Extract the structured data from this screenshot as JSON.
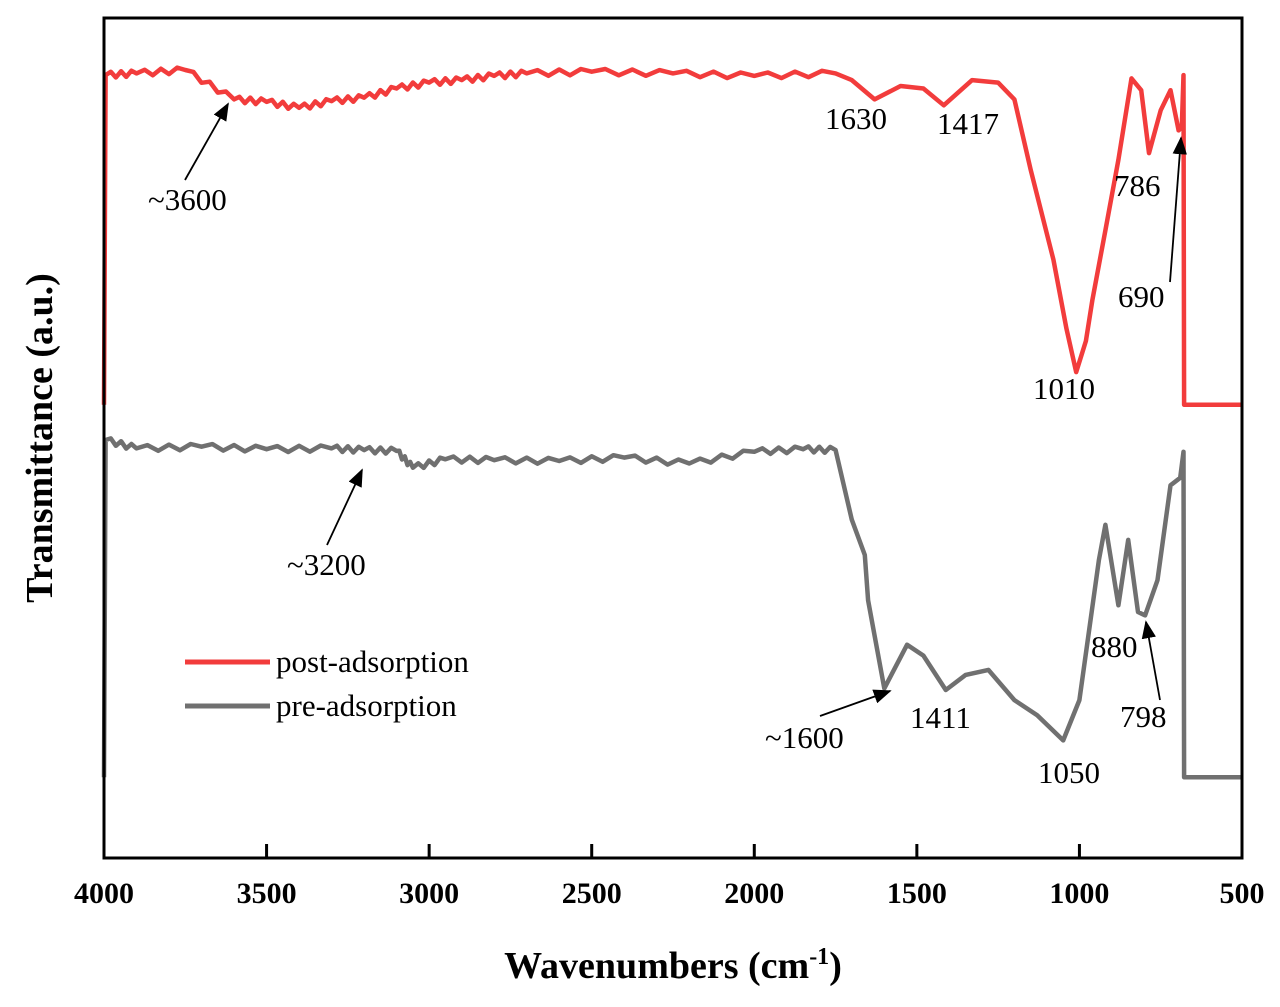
{
  "chart_data": {
    "type": "line",
    "title": "",
    "xlabel": "Wavenumbers (cm",
    "xlabel_sup": "-1",
    "xlabel_close": ")",
    "ylabel": "Transmittance (a.u.)",
    "xlim": [
      4000,
      500
    ],
    "ylim": [
      0,
      100
    ],
    "x_reversed": true,
    "grid": false,
    "legend_placement": "lower-left",
    "xticks": [
      4000,
      3500,
      3000,
      2500,
      2000,
      1500,
      1000,
      500
    ],
    "xtick_labels": [
      "4000",
      "3500",
      "3000",
      "2500",
      "2000",
      "1500",
      "1000",
      "500"
    ],
    "series": [
      {
        "name": "post-adsorption",
        "color": "#f23c3c",
        "points": [
          [
            4000,
            53.9
          ],
          [
            3995,
            93.2
          ],
          [
            3900,
            93.4
          ],
          [
            3750,
            93.8
          ],
          [
            3600,
            90.3
          ],
          [
            3500,
            90.0
          ],
          [
            3400,
            89.3
          ],
          [
            3300,
            90.1
          ],
          [
            3200,
            90.5
          ],
          [
            3100,
            91.6
          ],
          [
            3000,
            92.3
          ],
          [
            2900,
            92.6
          ],
          [
            2800,
            93.1
          ],
          [
            2700,
            93.4
          ],
          [
            2500,
            93.6
          ],
          [
            2250,
            93.4
          ],
          [
            2000,
            93.1
          ],
          [
            1750,
            93.4
          ],
          [
            1700,
            92.6
          ],
          [
            1630,
            90.3
          ],
          [
            1550,
            91.9
          ],
          [
            1480,
            91.6
          ],
          [
            1417,
            89.6
          ],
          [
            1330,
            92.6
          ],
          [
            1250,
            92.3
          ],
          [
            1200,
            90.3
          ],
          [
            1150,
            81.9
          ],
          [
            1080,
            71.2
          ],
          [
            1040,
            63.0
          ],
          [
            1010,
            57.8
          ],
          [
            980,
            61.5
          ],
          [
            960,
            66.4
          ],
          [
            920,
            74.7
          ],
          [
            880,
            83.1
          ],
          [
            840,
            92.8
          ],
          [
            810,
            91.4
          ],
          [
            786,
            83.9
          ],
          [
            750,
            89.0
          ],
          [
            720,
            91.4
          ],
          [
            695,
            86.6
          ],
          [
            685,
            87.0
          ],
          [
            680,
            93.2
          ],
          [
            678,
            53.9
          ],
          [
            500,
            53.9
          ]
        ]
      },
      {
        "name": "pre-adsorption",
        "color": "#707070",
        "points": [
          [
            4000,
            9.5
          ],
          [
            3995,
            49.7
          ],
          [
            3900,
            48.7
          ],
          [
            3700,
            48.9
          ],
          [
            3500,
            48.6
          ],
          [
            3300,
            48.7
          ],
          [
            3200,
            48.5
          ],
          [
            3100,
            48.4
          ],
          [
            3050,
            46.4
          ],
          [
            2950,
            47.4
          ],
          [
            2800,
            47.3
          ],
          [
            2600,
            47.2
          ],
          [
            2400,
            47.6
          ],
          [
            2200,
            46.9
          ],
          [
            2000,
            48.3
          ],
          [
            1850,
            48.6
          ],
          [
            1750,
            48.5
          ],
          [
            1700,
            40.2
          ],
          [
            1660,
            36.0
          ],
          [
            1650,
            30.6
          ],
          [
            1600,
            20.1
          ],
          [
            1530,
            25.3
          ],
          [
            1480,
            24.0
          ],
          [
            1411,
            19.9
          ],
          [
            1350,
            21.7
          ],
          [
            1280,
            22.3
          ],
          [
            1200,
            18.7
          ],
          [
            1130,
            16.9
          ],
          [
            1050,
            13.9
          ],
          [
            1000,
            18.7
          ],
          [
            940,
            35.4
          ],
          [
            920,
            39.6
          ],
          [
            880,
            30.0
          ],
          [
            850,
            37.8
          ],
          [
            820,
            29.2
          ],
          [
            798,
            28.8
          ],
          [
            760,
            33.0
          ],
          [
            720,
            44.3
          ],
          [
            690,
            45.2
          ],
          [
            680,
            48.3
          ],
          [
            678,
            9.5
          ],
          [
            500,
            9.5
          ]
        ]
      }
    ],
    "annotations": [
      {
        "text": "~3600",
        "series": "post-adsorption",
        "arrow": true
      },
      {
        "text": "1630",
        "series": "post-adsorption",
        "arrow": false
      },
      {
        "text": "1417",
        "series": "post-adsorption",
        "arrow": false
      },
      {
        "text": "1010",
        "series": "post-adsorption",
        "arrow": false
      },
      {
        "text": "786",
        "series": "post-adsorption",
        "arrow": false
      },
      {
        "text": "690",
        "series": "post-adsorption",
        "arrow": true
      },
      {
        "text": "~3200",
        "series": "pre-adsorption",
        "arrow": true
      },
      {
        "text": "~1600",
        "series": "pre-adsorption",
        "arrow": true
      },
      {
        "text": "1411",
        "series": "pre-adsorption",
        "arrow": false
      },
      {
        "text": "1050",
        "series": "pre-adsorption",
        "arrow": false
      },
      {
        "text": "880",
        "series": "pre-adsorption",
        "arrow": false
      },
      {
        "text": "798",
        "series": "pre-adsorption",
        "arrow": true
      }
    ]
  }
}
